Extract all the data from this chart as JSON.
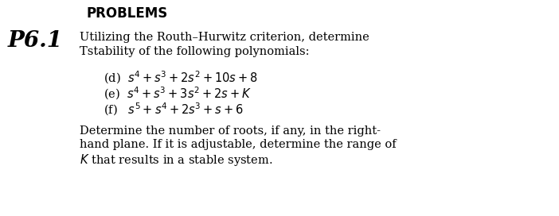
{
  "bg_color": "#ffffff",
  "header": "PROBLEMS",
  "problem_label": "P6.1",
  "intro_line1": "Utilizing the Routh–Hurwitz criterion, determine",
  "intro_line2": "Тstability of the following polynomials:",
  "items": [
    "(d)  $s^4 + s^3 + 2s^2 + 10s + 8$",
    "(e)  $s^4 + s^3 + 3s^2 + 2s + K$",
    "(f)   $s^5 + s^4 + 2s^3 + s + 6$"
  ],
  "footer_line1": "Determine the number of roots, if any, in the right-",
  "footer_line2": "hand plane. If it is adjustable, determine the range of",
  "footer_line3": "$K$ that results in a stable system.",
  "main_fontsize": 10.5,
  "item_fontsize": 10.5,
  "p61_fontsize": 20,
  "header_fontsize": 12
}
